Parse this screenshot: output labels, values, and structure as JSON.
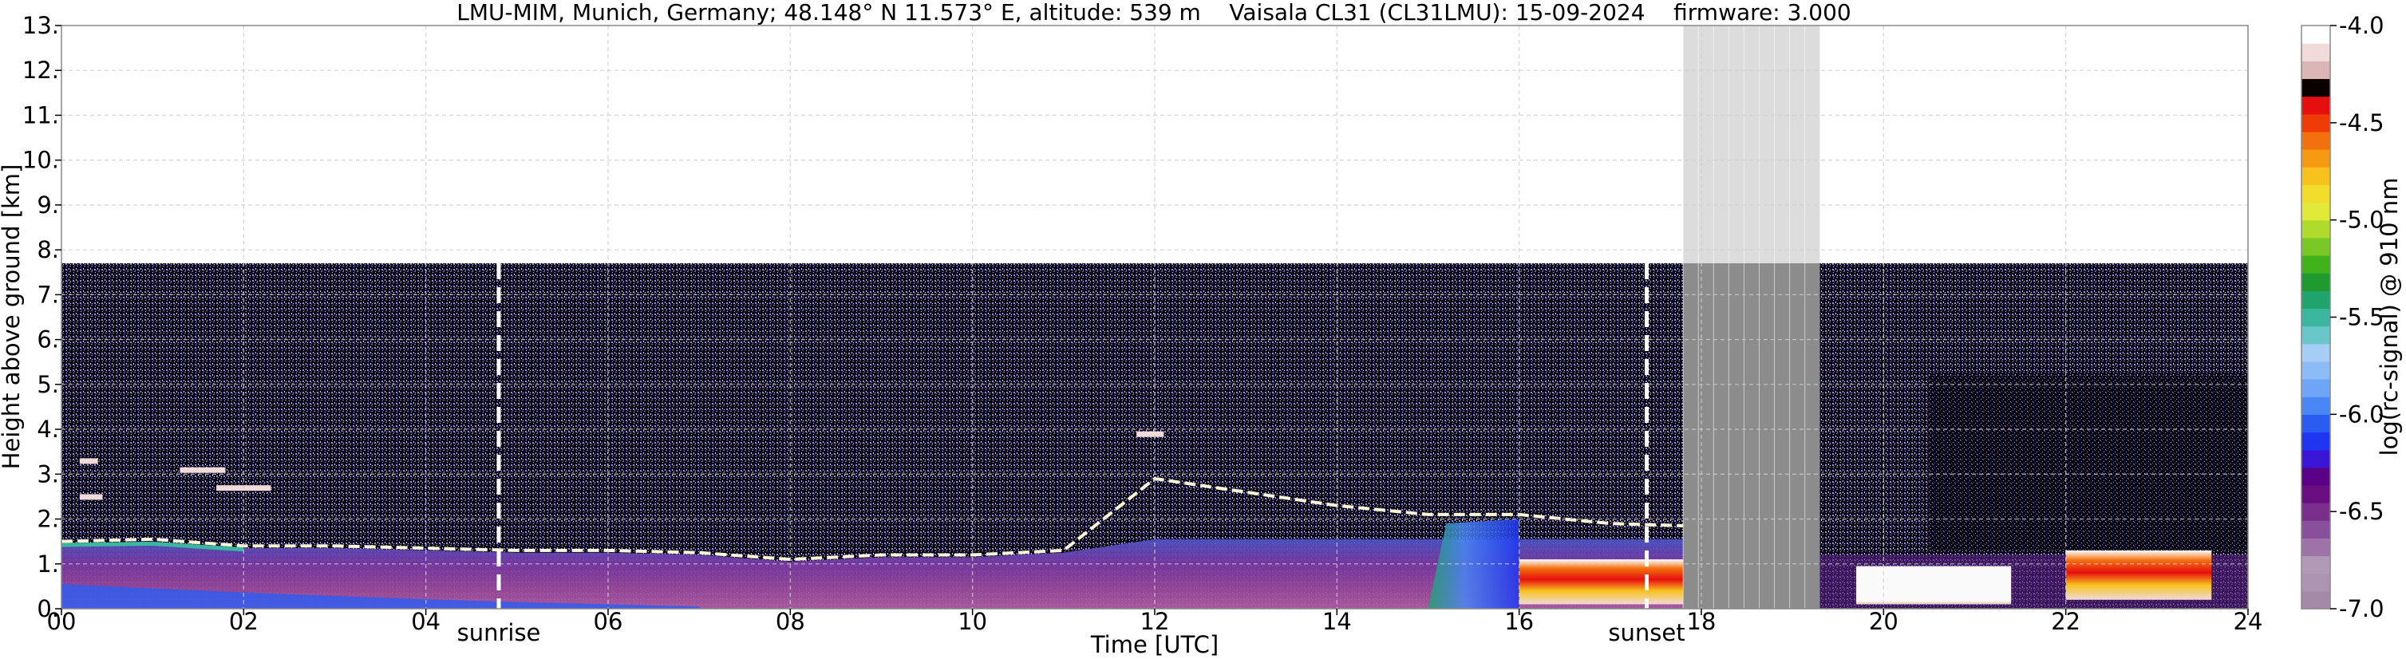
{
  "chart_data": {
    "type": "heatmap",
    "title": "LMU-MIM, Munich, Germany; 48.148° N 11.573° E, altitude: 539 m    Vaisala CL31 (CL31LMU): 15-09-2024    firmware: 3.000",
    "xlabel": "Time [UTC]",
    "ylabel": "Height above ground [km]",
    "xlim": [
      0,
      24
    ],
    "ylim": [
      0,
      13
    ],
    "x_ticks": [
      "00",
      "02",
      "04",
      "06",
      "08",
      "10",
      "12",
      "14",
      "16",
      "18",
      "20",
      "22",
      "24"
    ],
    "x_tick_values": [
      0,
      2,
      4,
      6,
      8,
      10,
      12,
      14,
      16,
      18,
      20,
      22,
      24
    ],
    "y_ticks": [
      "0.",
      "1.",
      "2.",
      "3.",
      "4.",
      "5.",
      "6.",
      "7.",
      "8.",
      "9.",
      "10.",
      "11.",
      "12.",
      "13."
    ],
    "y_tick_values": [
      0,
      1,
      2,
      3,
      4,
      5,
      6,
      7,
      8,
      9,
      10,
      11,
      12,
      13
    ],
    "grid": true,
    "colorbar": {
      "label": "log(rc-signal) @ 910 nm",
      "range": [
        -7.0,
        -4.0
      ],
      "ticks": [
        "-4.0",
        "-4.5",
        "-5.0",
        "-5.5",
        "-6.0",
        "-6.5",
        "-7.0"
      ],
      "tick_values": [
        -4.0,
        -4.5,
        -5.0,
        -5.5,
        -6.0,
        -6.5,
        -7.0
      ],
      "colors": [
        "#a58aa8",
        "#ad94b0",
        "#b19ab5",
        "#9d73a8",
        "#8a4f9a",
        "#7a2f8c",
        "#6a0d80",
        "#5a0088",
        "#3a17d6",
        "#1f36f0",
        "#2a5cf2",
        "#4a86f4",
        "#6fa5f6",
        "#8dbbf6",
        "#a6cdf6",
        "#69c6c9",
        "#3bb79f",
        "#21a36e",
        "#1f9a2e",
        "#42b21c",
        "#7ac825",
        "#b1db2c",
        "#e1ea38",
        "#f2dd2c",
        "#f7c21e",
        "#f79a13",
        "#f3700e",
        "#ef3b08",
        "#e60f0f",
        "#0a0000",
        "#dcb6b6",
        "#f0dada",
        "#ffffff"
      ]
    },
    "missing_data": {
      "start": 17.8,
      "end": 19.3,
      "max_height": 7.7,
      "color": "#8c8c8c",
      "above_color": "#dcdcdc"
    },
    "measurement_top_km": 7.7,
    "events": [
      {
        "label": "sunrise",
        "time": 4.8
      },
      {
        "label": "sunset",
        "time": 17.4
      }
    ],
    "cloud_layer": [
      {
        "time": 0.0,
        "height": 1.5
      },
      {
        "time": 1.0,
        "height": 1.55
      },
      {
        "time": 2.0,
        "height": 1.4
      },
      {
        "time": 3.0,
        "height": 1.4
      },
      {
        "time": 4.0,
        "height": 1.35
      },
      {
        "time": 5.0,
        "height": 1.3
      },
      {
        "time": 6.0,
        "height": 1.3
      },
      {
        "time": 7.0,
        "height": 1.25
      },
      {
        "time": 8.0,
        "height": 1.1
      },
      {
        "time": 9.0,
        "height": 1.2
      },
      {
        "time": 10.0,
        "height": 1.2
      },
      {
        "time": 11.0,
        "height": 1.3
      },
      {
        "time": 12.0,
        "height": 2.9
      },
      {
        "time": 13.0,
        "height": 2.6
      },
      {
        "time": 14.0,
        "height": 2.3
      },
      {
        "time": 15.0,
        "height": 2.1
      },
      {
        "time": 16.0,
        "height": 2.1
      },
      {
        "time": 17.0,
        "height": 1.9
      },
      {
        "time": 17.8,
        "height": 1.85
      }
    ],
    "elevated_aerosol_patches": [
      {
        "start": 0.2,
        "end": 0.4,
        "height": 3.3
      },
      {
        "start": 0.2,
        "end": 0.45,
        "height": 2.5
      },
      {
        "start": 1.3,
        "end": 1.8,
        "height": 3.1
      },
      {
        "start": 1.7,
        "end": 2.3,
        "height": 2.7
      },
      {
        "start": 11.8,
        "end": 12.1,
        "height": 3.9
      }
    ],
    "low_cloud_regions": [
      {
        "start": 16.0,
        "end": 17.8,
        "base": 0.1,
        "top": 1.1
      },
      {
        "start": 19.7,
        "end": 21.4,
        "base": 0.1,
        "top": 0.9
      },
      {
        "start": 22.0,
        "end": 23.6,
        "base": 0.2,
        "top": 1.3
      }
    ]
  }
}
